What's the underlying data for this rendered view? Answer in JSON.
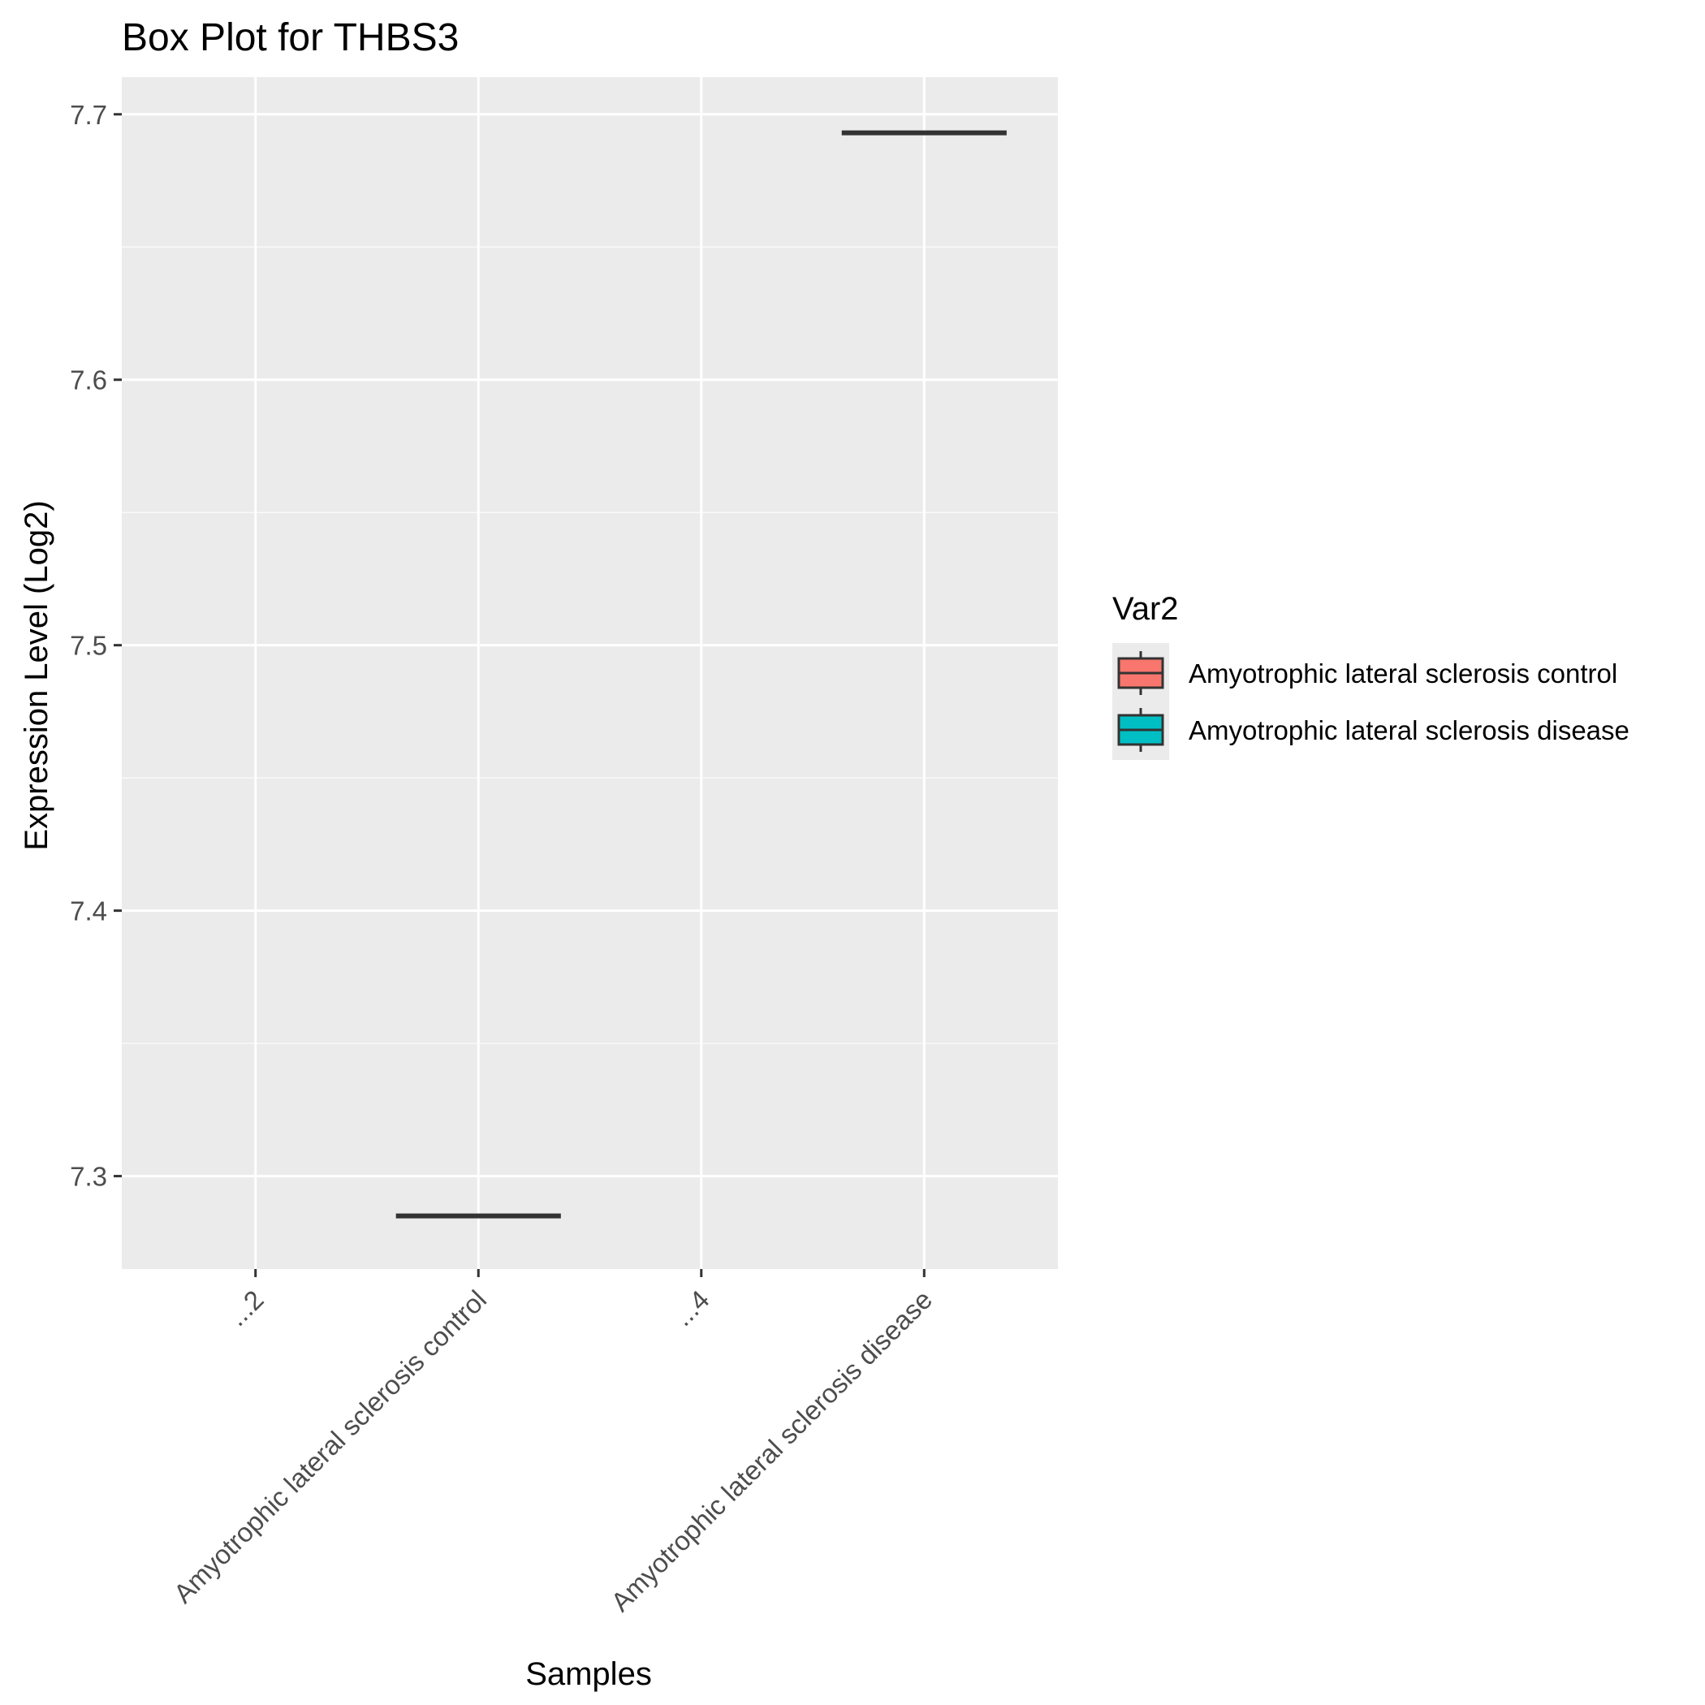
{
  "chart_data": {
    "type": "box",
    "title": "Box Plot for THBS3",
    "xlabel": "Samples",
    "ylabel": "Expression Level (Log2)",
    "categories": [
      "...2",
      "Amyotrophic lateral sclerosis control",
      "...4",
      "Amyotrophic lateral sclerosis disease"
    ],
    "ylim": [
      7.265,
      7.714
    ],
    "yticks": [
      7.3,
      7.4,
      7.5,
      7.6,
      7.7
    ],
    "ytick_labels": [
      "7.3",
      "7.4",
      "7.5",
      "7.6",
      "7.7"
    ],
    "grid": true,
    "series": [
      {
        "name": "Amyotrophic lateral sclerosis control",
        "category": "Amyotrophic lateral sclerosis control",
        "min": 7.285,
        "q1": 7.285,
        "median": 7.285,
        "q3": 7.285,
        "max": 7.285,
        "color": "#F8766D"
      },
      {
        "name": "Amyotrophic lateral sclerosis disease",
        "category": "Amyotrophic lateral sclerosis disease",
        "min": 7.693,
        "q1": 7.693,
        "median": 7.693,
        "q3": 7.693,
        "max": 7.693,
        "color": "#00BFC4"
      }
    ],
    "legend": {
      "title": "Var2",
      "position": "right",
      "entries": [
        {
          "label": "Amyotrophic lateral sclerosis control",
          "color": "#F8766D"
        },
        {
          "label": "Amyotrophic lateral sclerosis disease",
          "color": "#00BFC4"
        }
      ]
    },
    "colors": {
      "panel_background": "#EBEBEB",
      "grid_major": "#FFFFFF",
      "box_line": "#333333",
      "tick_text": "#4D4D4D"
    }
  }
}
